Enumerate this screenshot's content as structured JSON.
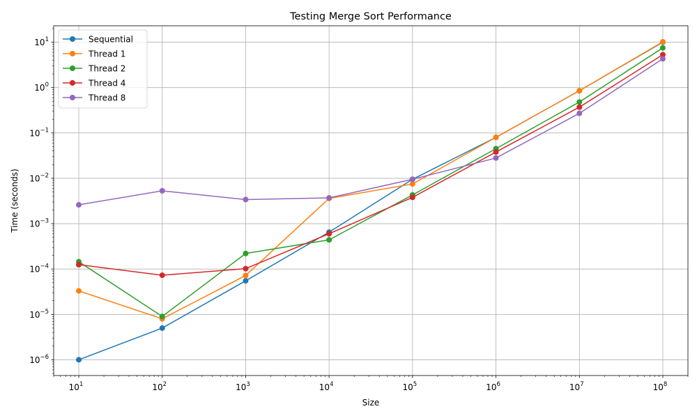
{
  "chart_data": {
    "type": "line",
    "title": "Testing Merge Sort Performance",
    "xlabel": "Size",
    "ylabel": "Time (seconds)",
    "x_scale": "log",
    "y_scale": "log",
    "xlim": [
      5,
      200000000
    ],
    "ylim": [
      4.5e-07,
      23
    ],
    "grid": true,
    "legend_position": "top-left",
    "x": [
      10,
      100,
      1000,
      10000,
      100000,
      1000000,
      10000000,
      100000000
    ],
    "x_ticks": [
      {
        "value": 10,
        "base": "10",
        "exp": "1"
      },
      {
        "value": 100,
        "base": "10",
        "exp": "2"
      },
      {
        "value": 1000,
        "base": "10",
        "exp": "3"
      },
      {
        "value": 10000,
        "base": "10",
        "exp": "4"
      },
      {
        "value": 100000,
        "base": "10",
        "exp": "5"
      },
      {
        "value": 1000000,
        "base": "10",
        "exp": "6"
      },
      {
        "value": 10000000,
        "base": "10",
        "exp": "7"
      },
      {
        "value": 100000000,
        "base": "10",
        "exp": "8"
      }
    ],
    "y_ticks": [
      {
        "value": 1e-06,
        "base": "10",
        "exp": "−6"
      },
      {
        "value": 1e-05,
        "base": "10",
        "exp": "−5"
      },
      {
        "value": 0.0001,
        "base": "10",
        "exp": "−4"
      },
      {
        "value": 0.001,
        "base": "10",
        "exp": "−3"
      },
      {
        "value": 0.01,
        "base": "10",
        "exp": "−2"
      },
      {
        "value": 0.1,
        "base": "10",
        "exp": "−1"
      },
      {
        "value": 1,
        "base": "10",
        "exp": "0"
      },
      {
        "value": 10,
        "base": "10",
        "exp": "1"
      }
    ],
    "series": [
      {
        "name": "Sequential",
        "color": "#1f77b4",
        "values": [
          1e-06,
          5e-06,
          5.5e-05,
          0.00065,
          0.0095,
          0.08,
          0.85,
          10.0
        ]
      },
      {
        "name": "Thread 1",
        "color": "#ff7f0e",
        "values": [
          3.3e-05,
          8e-06,
          7.2e-05,
          0.0036,
          0.0075,
          0.08,
          0.85,
          10.2
        ]
      },
      {
        "name": "Thread 2",
        "color": "#2ca02c",
        "values": [
          0.000145,
          9e-06,
          0.00022,
          0.00044,
          0.0043,
          0.045,
          0.48,
          7.5
        ]
      },
      {
        "name": "Thread 4",
        "color": "#d62728",
        "values": [
          0.000125,
          7.3e-05,
          0.000102,
          0.0006,
          0.0038,
          0.038,
          0.37,
          5.3
        ]
      },
      {
        "name": "Thread 8",
        "color": "#9467bd",
        "values": [
          0.0026,
          0.0053,
          0.0034,
          0.0037,
          0.0095,
          0.028,
          0.27,
          4.3
        ]
      }
    ]
  }
}
